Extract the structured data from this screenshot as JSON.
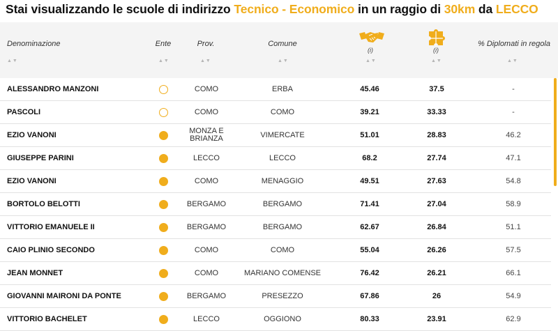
{
  "title": {
    "prefix": "Stai visualizzando le scuole di indirizzo",
    "indirizzo": "Tecnico - Economico",
    "middle": "in un raggio di",
    "raggio": "30km",
    "da": "da",
    "citta": "LECCO"
  },
  "header": {
    "denominazione": "Denominazione",
    "ente": "Ente",
    "prov": "Prov.",
    "comune": "Comune",
    "info1": "(i)",
    "info2": "(i)",
    "diplomati": "% Diplomati in regola",
    "sort_arrows": "▲▼"
  },
  "icons": {
    "col5": "handshake-icon",
    "col6": "puzzle-icon"
  },
  "colors": {
    "accent": "#f0ad1c",
    "header_bg": "#f4f4f4"
  },
  "rows": [
    {
      "name": "ALESSANDRO MANZONI",
      "ente": "hollow",
      "prov": "COMO",
      "comune": "ERBA",
      "v1": "45.46",
      "v2": "37.5",
      "pct": "-"
    },
    {
      "name": "PASCOLI",
      "ente": "hollow",
      "prov": "COMO",
      "comune": "COMO",
      "v1": "39.21",
      "v2": "33.33",
      "pct": "-"
    },
    {
      "name": "EZIO VANONI",
      "ente": "filled",
      "prov": "MONZA E BRIANZA",
      "comune": "VIMERCATE",
      "v1": "51.01",
      "v2": "28.83",
      "pct": "46.2"
    },
    {
      "name": "GIUSEPPE PARINI",
      "ente": "filled",
      "prov": "LECCO",
      "comune": "LECCO",
      "v1": "68.2",
      "v2": "27.74",
      "pct": "47.1"
    },
    {
      "name": "EZIO VANONI",
      "ente": "filled",
      "prov": "COMO",
      "comune": "MENAGGIO",
      "v1": "49.51",
      "v2": "27.63",
      "pct": "54.8"
    },
    {
      "name": "BORTOLO BELOTTI",
      "ente": "filled",
      "prov": "BERGAMO",
      "comune": "BERGAMO",
      "v1": "71.41",
      "v2": "27.04",
      "pct": "58.9"
    },
    {
      "name": "VITTORIO EMANUELE II",
      "ente": "filled",
      "prov": "BERGAMO",
      "comune": "BERGAMO",
      "v1": "62.67",
      "v2": "26.84",
      "pct": "51.1"
    },
    {
      "name": "CAIO PLINIO SECONDO",
      "ente": "filled",
      "prov": "COMO",
      "comune": "COMO",
      "v1": "55.04",
      "v2": "26.26",
      "pct": "57.5"
    },
    {
      "name": "JEAN MONNET",
      "ente": "filled",
      "prov": "COMO",
      "comune": "MARIANO COMENSE",
      "v1": "76.42",
      "v2": "26.21",
      "pct": "66.1"
    },
    {
      "name": "GIOVANNI MAIRONI DA PONTE",
      "ente": "filled",
      "prov": "BERGAMO",
      "comune": "PRESEZZO",
      "v1": "67.86",
      "v2": "26",
      "pct": "54.9"
    },
    {
      "name": "VITTORIO BACHELET",
      "ente": "filled",
      "prov": "LECCO",
      "comune": "OGGIONO",
      "v1": "80.33",
      "v2": "23.91",
      "pct": "62.9"
    }
  ]
}
